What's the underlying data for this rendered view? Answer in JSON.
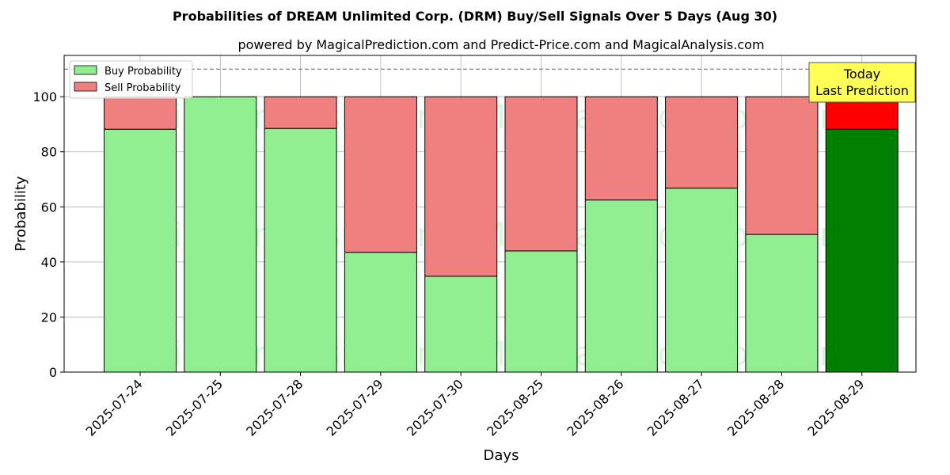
{
  "chart_data": {
    "type": "bar",
    "stacked": true,
    "title": "Probabilities of DREAM Unlimited Corp. (DRM) Buy/Sell Signals Over 5 Days (Aug 30)",
    "subtitle": "powered by MagicalPrediction.com and Predict-Price.com and MagicalAnalysis.com",
    "xlabel": "Days",
    "ylabel": "Probability",
    "ylim": [
      0,
      115
    ],
    "yticks": [
      0,
      20,
      40,
      60,
      80,
      100
    ],
    "grid": true,
    "legend_position": "top-left",
    "categories": [
      "2025-07-24",
      "2025-07-25",
      "2025-07-28",
      "2025-07-29",
      "2025-07-30",
      "2025-08-25",
      "2025-08-26",
      "2025-08-27",
      "2025-08-28",
      "2025-08-29"
    ],
    "series": [
      {
        "name": "Buy Probability",
        "color": "#90ee90",
        "highlight_color": "#008000",
        "values": [
          88.2,
          100.0,
          88.5,
          43.5,
          34.8,
          44.0,
          62.5,
          66.8,
          50.0,
          88.2
        ]
      },
      {
        "name": "Sell Probability",
        "color": "#f08080",
        "highlight_color": "#ff0000",
        "values": [
          11.8,
          0.0,
          11.5,
          56.5,
          65.2,
          56.0,
          37.5,
          33.2,
          50.0,
          11.8
        ]
      }
    ],
    "reference_line": {
      "value": 110,
      "style": "dashed",
      "color": "#808080"
    },
    "annotation": {
      "line1": "Today",
      "line2": "Last Prediction",
      "category": "2025-08-29",
      "background": "#ffff55"
    },
    "highlight_last": true,
    "watermarks": [
      "MagicalAnalysis.com",
      "MagicalPrediction.com",
      "MagicalAnalysis.com",
      "MagicalPrediction.com",
      "MagicalAnalysis.com",
      "MagicalPrediction.com"
    ]
  }
}
